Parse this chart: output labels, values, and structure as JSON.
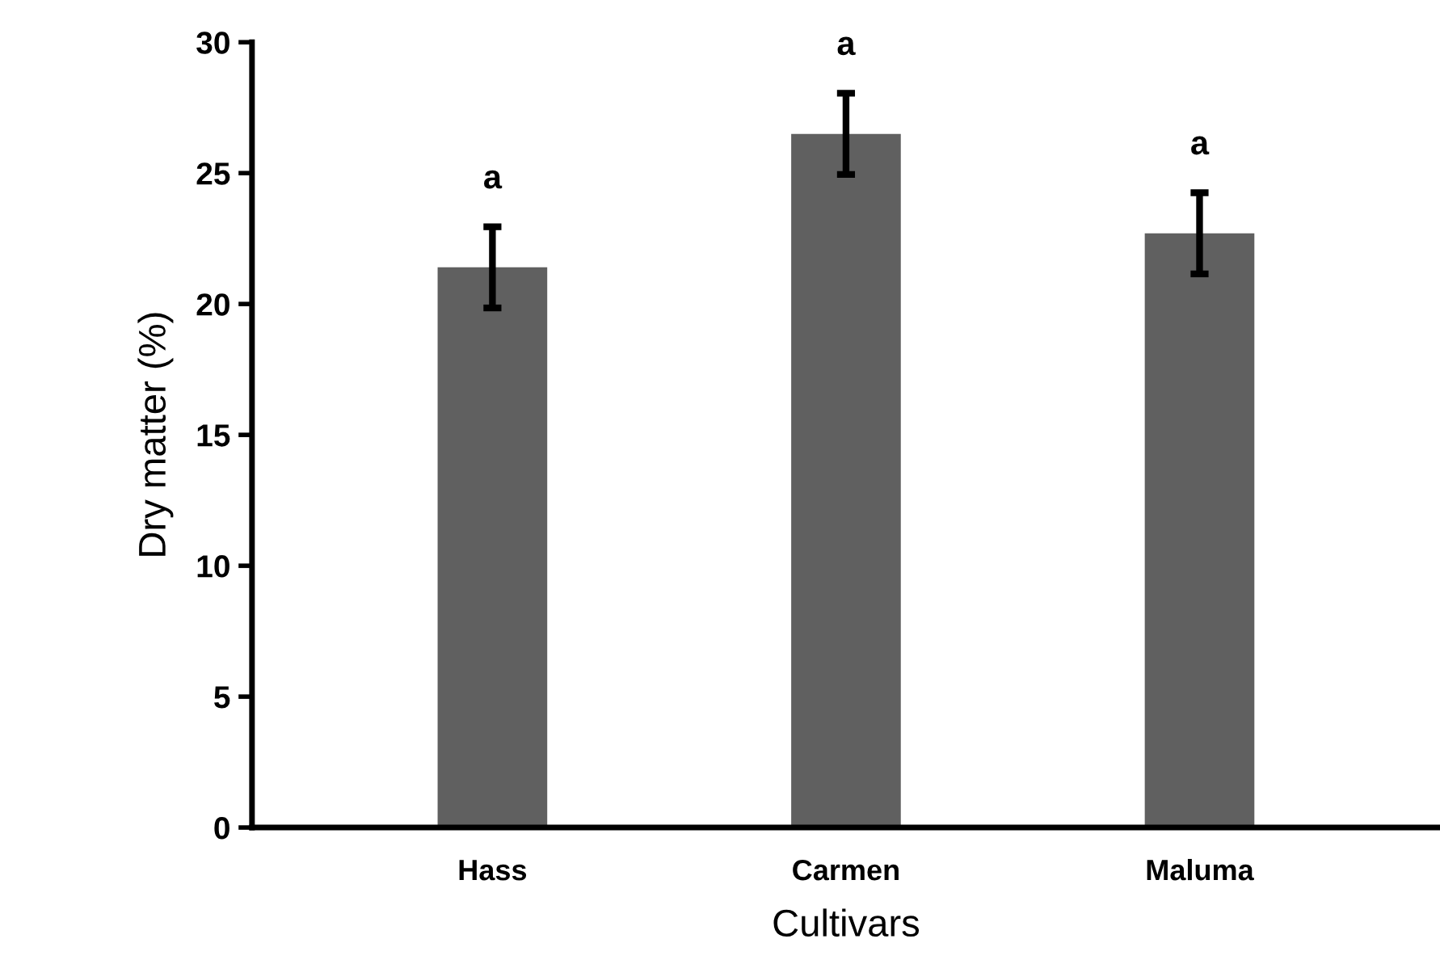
{
  "chart_data": {
    "type": "bar",
    "xlabel": "Cultivars",
    "ylabel": "Dry matter (%)",
    "categories": [
      "Hass",
      "Carmen",
      "Maluma"
    ],
    "values": [
      21.4,
      26.5,
      22.7
    ],
    "errors": [
      1.55,
      1.55,
      1.55
    ],
    "color": "#606060",
    "ylim": [
      0,
      30
    ],
    "yticks": [
      0,
      5,
      10,
      15,
      20,
      25,
      30
    ],
    "grid": false,
    "annotations": [
      "a",
      "a",
      "a"
    ]
  }
}
